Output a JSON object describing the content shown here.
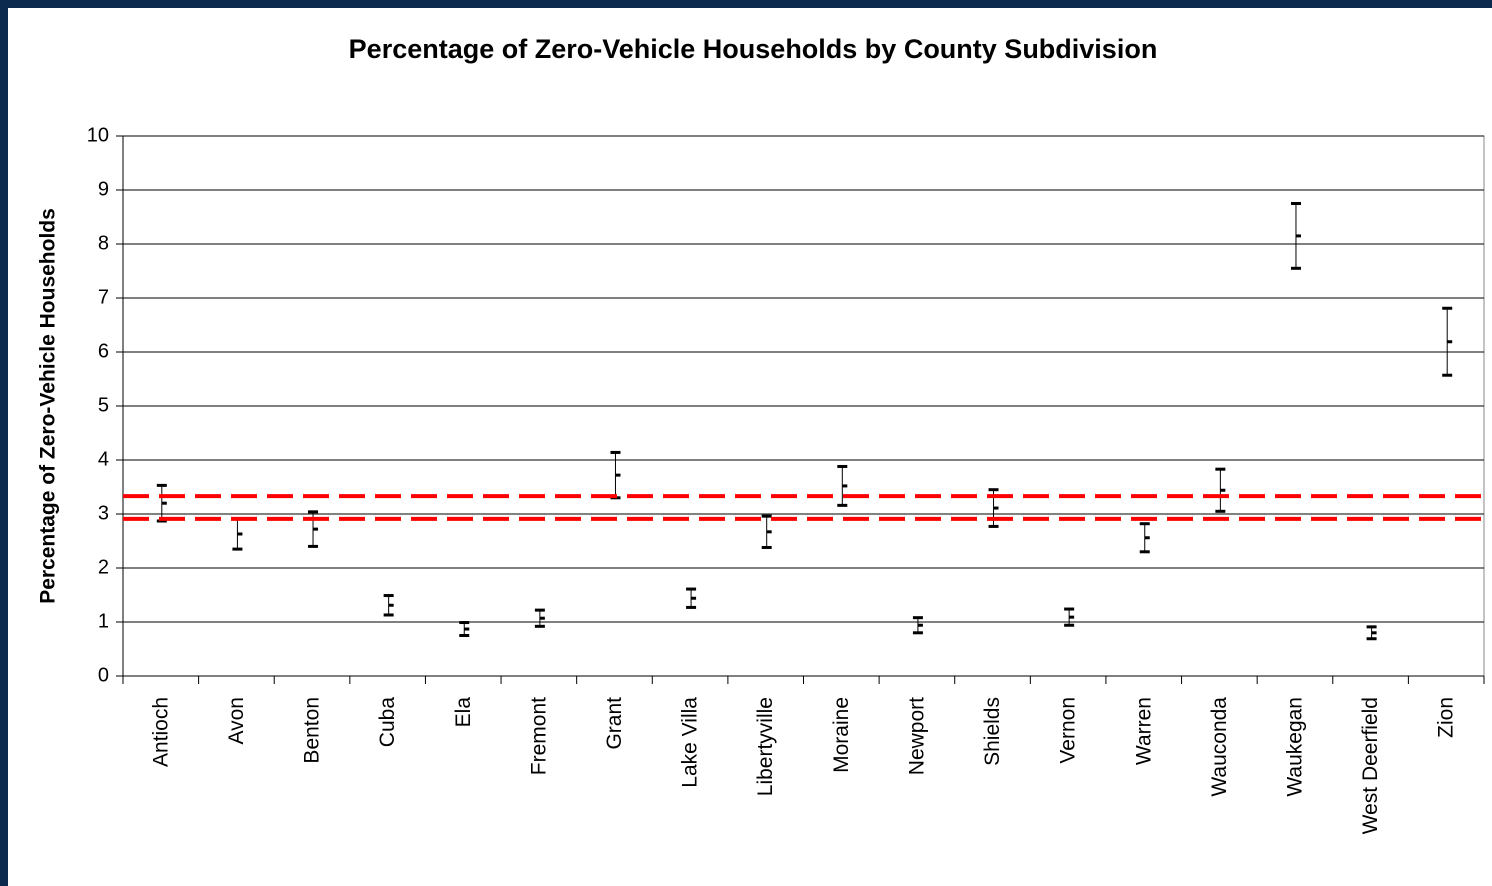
{
  "chart_data": {
    "type": "errorbar",
    "title": "Percentage of Zero-Vehicle Households by County Subdivision",
    "y_label": "Percentage of Zero-Vehicle Households",
    "categories": [
      "Antioch",
      "Avon",
      "Benton",
      "Cuba",
      "Ela",
      "Fremont",
      "Grant",
      "Lake Villa",
      "Libertyville",
      "Moraine",
      "Newport",
      "Shields",
      "Vernon",
      "Warren",
      "Wauconda",
      "Waukegan",
      "West Deerfield",
      "Zion"
    ],
    "values": [
      3.2,
      2.63,
      2.72,
      1.31,
      0.87,
      1.07,
      3.72,
      1.44,
      2.67,
      3.52,
      0.94,
      3.11,
      1.09,
      2.56,
      3.44,
      8.15,
      0.8,
      6.19
    ],
    "errors": [
      0.33,
      0.28,
      0.32,
      0.18,
      0.12,
      0.15,
      0.42,
      0.17,
      0.29,
      0.36,
      0.14,
      0.34,
      0.15,
      0.26,
      0.39,
      0.6,
      0.11,
      0.62
    ],
    "color": "#000000",
    "reference_lines": [
      3.33,
      2.91
    ],
    "reference_color": "#ff0000",
    "ylim": [
      0,
      10
    ],
    "yticks": [
      0,
      1,
      2,
      3,
      4,
      5,
      6,
      7,
      8,
      9,
      10
    ],
    "grid": true
  }
}
